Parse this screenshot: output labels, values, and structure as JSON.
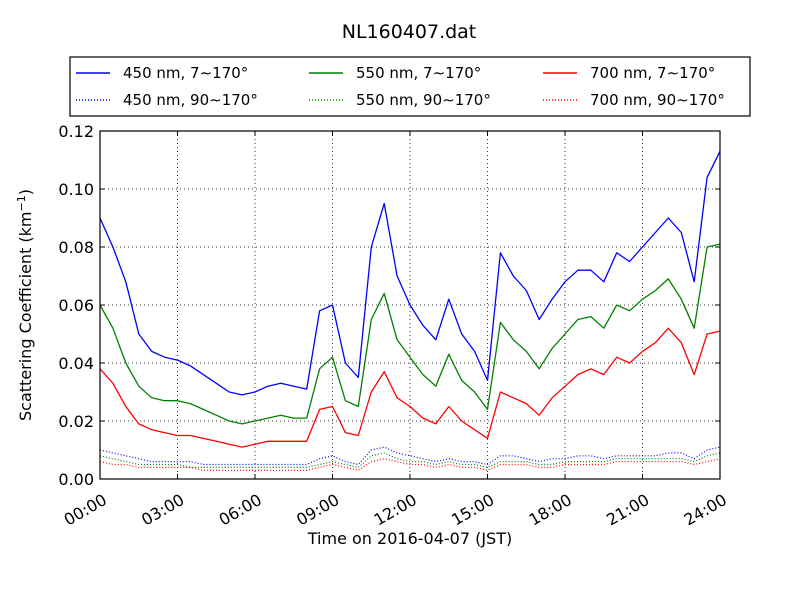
{
  "chart_data": {
    "type": "line",
    "title": "NL160407.dat",
    "xlabel": "Time on 2016-04-07 (JST)",
    "ylabel_main": "Scattering Coefficient (km",
    "ylabel_sup": "−1",
    "ylabel_end": ")",
    "xlim": [
      "00:00",
      "24:00"
    ],
    "ylim": [
      0.0,
      0.12
    ],
    "x_ticks": [
      "00:00",
      "03:00",
      "06:00",
      "09:00",
      "12:00",
      "15:00",
      "18:00",
      "21:00",
      "24:00"
    ],
    "y_ticks": [
      "0.00",
      "0.02",
      "0.04",
      "0.06",
      "0.08",
      "0.10",
      "0.12"
    ],
    "grid": true,
    "legend_position": "top",
    "x": [
      "00:00",
      "00:30",
      "01:00",
      "01:30",
      "02:00",
      "02:30",
      "03:00",
      "03:30",
      "04:00",
      "04:30",
      "05:00",
      "05:30",
      "06:00",
      "06:30",
      "07:00",
      "07:30",
      "08:00",
      "08:30",
      "09:00",
      "09:30",
      "10:00",
      "10:30",
      "11:00",
      "11:30",
      "12:00",
      "12:30",
      "13:00",
      "13:30",
      "14:00",
      "14:30",
      "15:00",
      "15:30",
      "16:00",
      "16:30",
      "17:00",
      "17:30",
      "18:00",
      "18:30",
      "19:00",
      "19:30",
      "20:00",
      "20:30",
      "21:00",
      "21:30",
      "22:00",
      "22:30",
      "23:00",
      "23:30",
      "24:00"
    ],
    "series": [
      {
        "name": "450 nm, 7∼170°",
        "color": "#0000ff",
        "style": "solid",
        "values": [
          0.09,
          0.08,
          0.068,
          0.05,
          0.044,
          0.042,
          0.041,
          0.039,
          0.036,
          0.033,
          0.03,
          0.029,
          0.03,
          0.032,
          0.033,
          0.032,
          0.031,
          0.058,
          0.06,
          0.04,
          0.035,
          0.08,
          0.095,
          0.07,
          0.06,
          0.053,
          0.048,
          0.062,
          0.05,
          0.044,
          0.034,
          0.078,
          0.07,
          0.065,
          0.055,
          0.062,
          0.068,
          0.072,
          0.072,
          0.068,
          0.078,
          0.075,
          0.08,
          0.085,
          0.09,
          0.085,
          0.068,
          0.104,
          0.113
        ]
      },
      {
        "name": "550 nm, 7∼170°",
        "color": "#008000",
        "style": "solid",
        "values": [
          0.06,
          0.052,
          0.04,
          0.032,
          0.028,
          0.027,
          0.027,
          0.026,
          0.024,
          0.022,
          0.02,
          0.019,
          0.02,
          0.021,
          0.022,
          0.021,
          0.021,
          0.038,
          0.042,
          0.027,
          0.025,
          0.055,
          0.064,
          0.048,
          0.042,
          0.036,
          0.032,
          0.043,
          0.034,
          0.03,
          0.024,
          0.054,
          0.048,
          0.044,
          0.038,
          0.045,
          0.05,
          0.055,
          0.056,
          0.052,
          0.06,
          0.058,
          0.062,
          0.065,
          0.069,
          0.062,
          0.052,
          0.08,
          0.081
        ]
      },
      {
        "name": "700 nm, 7∼170°",
        "color": "#ff0000",
        "style": "solid",
        "values": [
          0.038,
          0.033,
          0.025,
          0.019,
          0.017,
          0.016,
          0.015,
          0.015,
          0.014,
          0.013,
          0.012,
          0.011,
          0.012,
          0.013,
          0.013,
          0.013,
          0.013,
          0.024,
          0.025,
          0.016,
          0.015,
          0.03,
          0.037,
          0.028,
          0.025,
          0.021,
          0.019,
          0.025,
          0.02,
          0.017,
          0.014,
          0.03,
          0.028,
          0.026,
          0.022,
          0.028,
          0.032,
          0.036,
          0.038,
          0.036,
          0.042,
          0.04,
          0.044,
          0.047,
          0.052,
          0.047,
          0.036,
          0.05,
          0.051
        ]
      },
      {
        "name": "450 nm, 90∼170°",
        "color": "#0000ff",
        "style": "dotted",
        "values": [
          0.01,
          0.009,
          0.008,
          0.007,
          0.006,
          0.006,
          0.006,
          0.006,
          0.005,
          0.005,
          0.005,
          0.005,
          0.005,
          0.005,
          0.005,
          0.005,
          0.005,
          0.007,
          0.008,
          0.006,
          0.005,
          0.01,
          0.011,
          0.009,
          0.008,
          0.007,
          0.006,
          0.007,
          0.006,
          0.006,
          0.005,
          0.008,
          0.008,
          0.007,
          0.006,
          0.007,
          0.007,
          0.008,
          0.008,
          0.007,
          0.008,
          0.008,
          0.008,
          0.008,
          0.009,
          0.009,
          0.007,
          0.01,
          0.011
        ]
      },
      {
        "name": "550 nm, 90∼170°",
        "color": "#008000",
        "style": "dotted",
        "values": [
          0.008,
          0.007,
          0.006,
          0.005,
          0.005,
          0.005,
          0.005,
          0.004,
          0.004,
          0.004,
          0.004,
          0.004,
          0.004,
          0.004,
          0.004,
          0.004,
          0.004,
          0.005,
          0.006,
          0.005,
          0.004,
          0.008,
          0.009,
          0.007,
          0.006,
          0.006,
          0.005,
          0.006,
          0.005,
          0.005,
          0.004,
          0.006,
          0.006,
          0.006,
          0.005,
          0.005,
          0.006,
          0.006,
          0.006,
          0.006,
          0.007,
          0.007,
          0.007,
          0.007,
          0.007,
          0.007,
          0.006,
          0.008,
          0.009
        ]
      },
      {
        "name": "700 nm, 90∼170°",
        "color": "#ff0000",
        "style": "dotted",
        "values": [
          0.006,
          0.005,
          0.005,
          0.004,
          0.004,
          0.004,
          0.004,
          0.004,
          0.003,
          0.003,
          0.003,
          0.003,
          0.003,
          0.003,
          0.003,
          0.003,
          0.003,
          0.004,
          0.005,
          0.004,
          0.003,
          0.006,
          0.007,
          0.006,
          0.005,
          0.005,
          0.004,
          0.005,
          0.004,
          0.004,
          0.003,
          0.005,
          0.005,
          0.005,
          0.004,
          0.004,
          0.005,
          0.005,
          0.005,
          0.005,
          0.006,
          0.006,
          0.006,
          0.006,
          0.006,
          0.006,
          0.005,
          0.006,
          0.007
        ]
      }
    ],
    "legend_order": [
      0,
      1,
      2,
      3,
      4,
      5
    ]
  }
}
